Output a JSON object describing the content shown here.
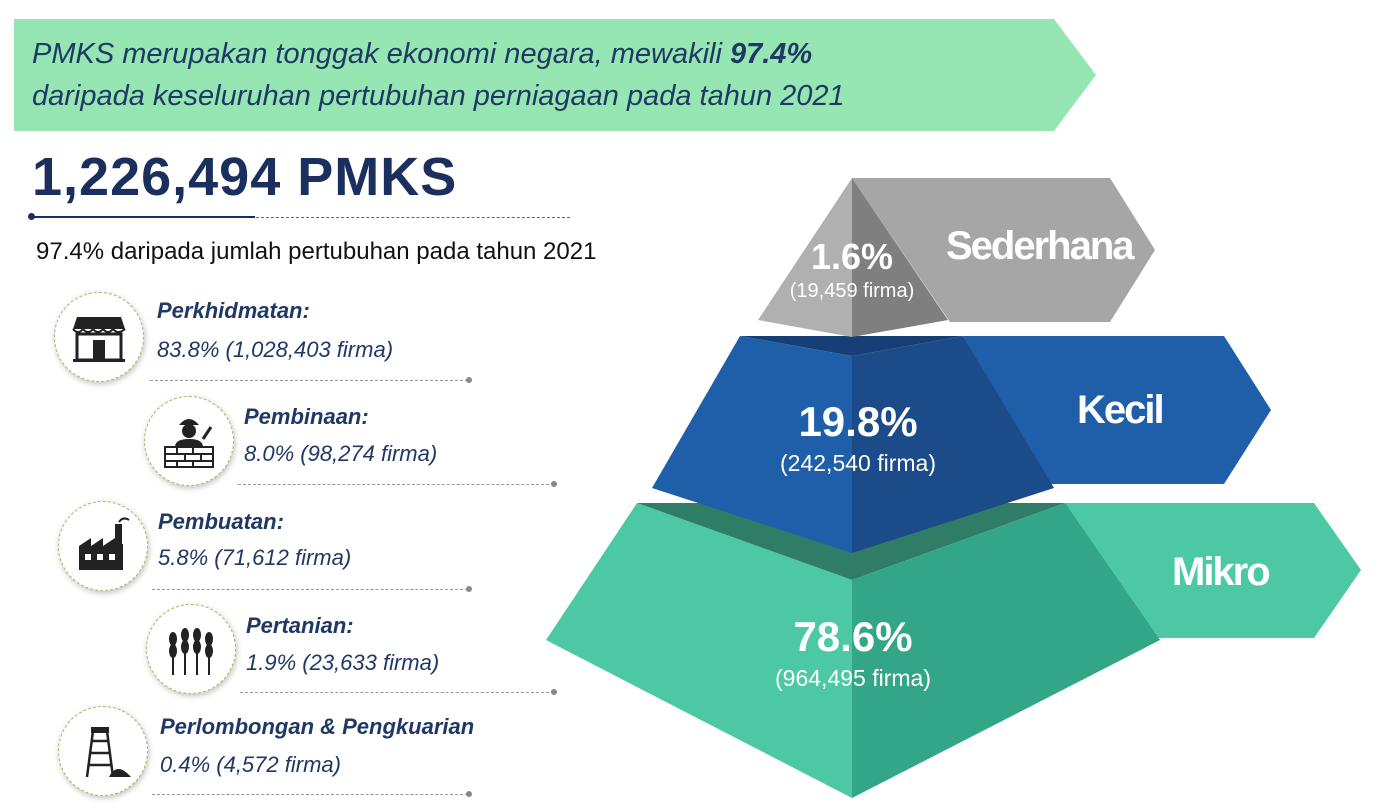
{
  "banner": {
    "text_before": "PMKS merupakan tonggak ekonomi negara, mewakili ",
    "highlight": "97.4%",
    "text_after": "daripada keseluruhan pertubuhan perniagaan pada tahun 2021"
  },
  "total": {
    "value": "1,226,494 PMKS",
    "subtitle": "97.4% daripada jumlah pertubuhan pada tahun 2021"
  },
  "sectors": [
    {
      "name": "Perkhidmatan:",
      "value": "83.8% (1,028,403 firma)",
      "icon": "shop-icon"
    },
    {
      "name": "Pembinaan:",
      "value": "8.0% (98,274 firma)",
      "icon": "construction-worker-icon"
    },
    {
      "name": "Pembuatan:",
      "value": "5.8% (71,612 firma)",
      "icon": "factory-icon"
    },
    {
      "name": "Pertanian:",
      "value": "1.9% (23,633 firma)",
      "icon": "wheat-icon"
    },
    {
      "name": "Perlombongan & Pengkuarian",
      "value": "0.4% (4,572 firma)",
      "icon": "mine-icon"
    }
  ],
  "pyramid": {
    "tiers": [
      {
        "name": "Sederhana",
        "percent": "1.6%",
        "count": "(19,459 firma)"
      },
      {
        "name": "Kecil",
        "percent": "19.8%",
        "count": "(242,540 firma)"
      },
      {
        "name": "Mikro",
        "percent": "78.6%",
        "count": "(964,495 firma)"
      }
    ]
  },
  "colors": {
    "banner_bg": "#96e6b3",
    "navy": "#1f3864",
    "sederhana": "#a6a6a6",
    "kecil": "#1f5faa",
    "mikro": "#4dc8a4"
  }
}
